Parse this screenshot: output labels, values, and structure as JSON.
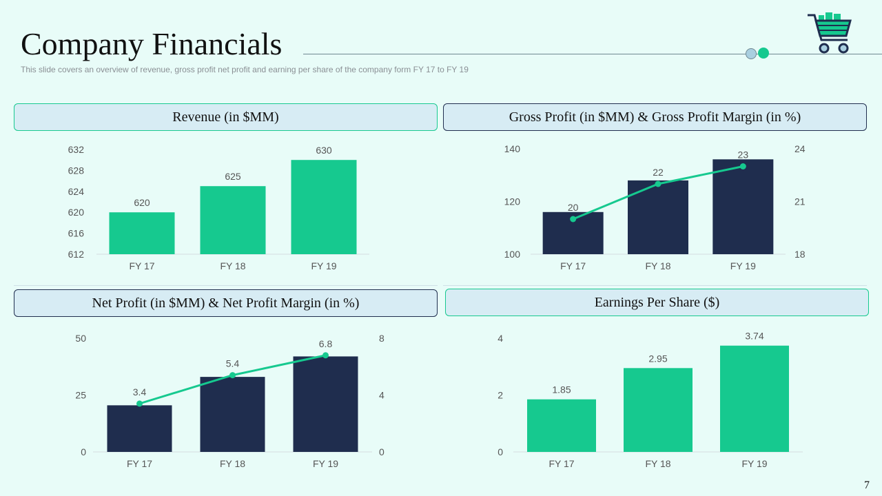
{
  "page": {
    "title": "Company Financials",
    "subtitle": "This slide covers an overview of revenue, gross profit net profit and earning per share of the company form FY 17 to FY 19",
    "page_number": "7",
    "colors": {
      "green": "#16c98f",
      "navy": "#1f2d4e",
      "background": "#e8fcf8"
    }
  },
  "chart_data": [
    {
      "type": "bar",
      "title": "Revenue (in $MM)",
      "categories": [
        "FY 17",
        "FY 18",
        "FY 19"
      ],
      "values": [
        620,
        625,
        630
      ],
      "data_labels": [
        "620",
        "625",
        "630"
      ],
      "ylim": [
        612,
        632
      ],
      "yticks": [
        612,
        616,
        620,
        624,
        628,
        632
      ],
      "bar_color": "#16c98f"
    },
    {
      "type": "bar+line",
      "title": "Gross Profit (in $MM) & Gross Profit Margin (in %)",
      "categories": [
        "FY 17",
        "FY 18",
        "FY 19"
      ],
      "series": [
        {
          "name": "Gross Profit",
          "kind": "bar",
          "axis": "left",
          "values": [
            116,
            128,
            136
          ]
        },
        {
          "name": "Gross Profit Margin",
          "kind": "line",
          "axis": "right",
          "values": [
            20,
            22,
            23
          ],
          "data_labels": [
            "20",
            "22",
            "23"
          ]
        }
      ],
      "ylim": [
        100,
        140
      ],
      "yticks": [
        100,
        120,
        140
      ],
      "y2lim": [
        18,
        24
      ],
      "y2ticks": [
        18,
        21,
        24
      ],
      "bar_color": "#1f2d4e",
      "line_color": "#16c98f"
    },
    {
      "type": "bar+line",
      "title": "Net Profit (in $MM) & Net Profit Margin (in %)",
      "categories": [
        "FY 17",
        "FY 18",
        "FY 19"
      ],
      "series": [
        {
          "name": "Net Profit",
          "kind": "bar",
          "axis": "left",
          "values": [
            20.5,
            33,
            42
          ]
        },
        {
          "name": "Net Profit Margin",
          "kind": "line",
          "axis": "right",
          "values": [
            3.4,
            5.4,
            6.8
          ],
          "data_labels": [
            "3.4",
            "5.4",
            "6.8"
          ]
        }
      ],
      "ylim": [
        0,
        50
      ],
      "yticks": [
        0,
        25,
        50
      ],
      "y2lim": [
        0,
        8
      ],
      "y2ticks": [
        0,
        4,
        8
      ],
      "bar_color": "#1f2d4e",
      "line_color": "#16c98f"
    },
    {
      "type": "bar",
      "title": "Earnings Per Share ($)",
      "categories": [
        "FY 17",
        "FY 18",
        "FY 19"
      ],
      "values": [
        1.85,
        2.95,
        3.74
      ],
      "data_labels": [
        "1.85",
        "2.95",
        "3.74"
      ],
      "ylim": [
        0,
        4
      ],
      "yticks": [
        0,
        2,
        4
      ],
      "bar_color": "#16c98f"
    }
  ]
}
